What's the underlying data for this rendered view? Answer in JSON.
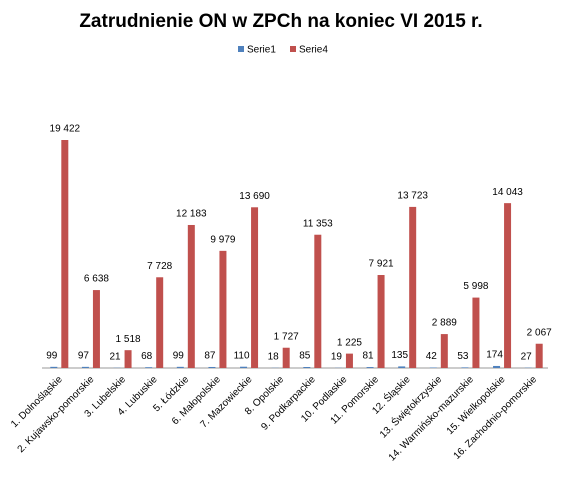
{
  "chart_data": {
    "type": "bar",
    "title": "Zatrudnienie ON w ZPCh na koniec VI 2015 r.",
    "categories": [
      "1. Dolnośląskie",
      "2. Kujawsko-pomorskie",
      "3. Lubelskie",
      "4. Lubuskie",
      "5. Łódzkie",
      "6. Małopolskie",
      "7. Mazowieckie",
      "8. Opolskie",
      "9. Podkarpackie",
      "10. Podlaskie",
      "11. Pomorskie",
      "12. Śląskie",
      "13. Świętokrzyskie",
      "14. Warmińsko-mazurskie",
      "15. Wielkopolskie",
      "16. Zachodnio-pomorskie"
    ],
    "series": [
      {
        "name": "Serie1",
        "color": "#4f81bd",
        "values": [
          99,
          97,
          21,
          68,
          99,
          87,
          110,
          18,
          85,
          19,
          81,
          135,
          42,
          53,
          174,
          27
        ]
      },
      {
        "name": "Serie4",
        "color": "#c0504d",
        "values": [
          19422,
          6638,
          1518,
          7728,
          12183,
          9979,
          13690,
          1727,
          11353,
          1225,
          7921,
          13723,
          2889,
          5998,
          14043,
          2067
        ],
        "value_labels": [
          "19 422",
          "6 638",
          "1 518",
          "7 728",
          "12 183",
          "9 979",
          "13 690",
          "1 727",
          "11 353",
          "1 225",
          "7 921",
          "13 723",
          "2 889",
          "5 998",
          "14 043",
          "2 067"
        ]
      }
    ]
  }
}
